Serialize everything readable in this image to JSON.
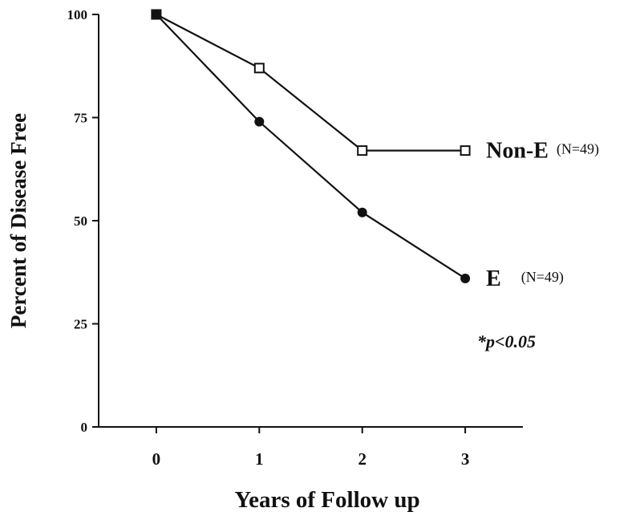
{
  "chart_data": {
    "type": "line",
    "x_label": "Years of Follow up",
    "y_label": "Percent of Disease Free",
    "x": [
      0,
      1,
      2,
      3
    ],
    "xlim": [
      -0.56,
      3.56
    ],
    "xticks": [
      0,
      1,
      2,
      3
    ],
    "ylim": [
      0,
      100
    ],
    "yticks": [
      0,
      25,
      50,
      75,
      100
    ],
    "grid": false,
    "series": [
      {
        "name": "Non-E",
        "n_label": "(N=49)",
        "color": "#111111",
        "marker": "open-square",
        "values": [
          100,
          87,
          67,
          67
        ]
      },
      {
        "name": "E",
        "n_label": "(N=49)",
        "color": "#111111",
        "marker": "filled-circle",
        "values": [
          100,
          74,
          52,
          36
        ]
      }
    ],
    "annotation": "*p<0.05"
  }
}
